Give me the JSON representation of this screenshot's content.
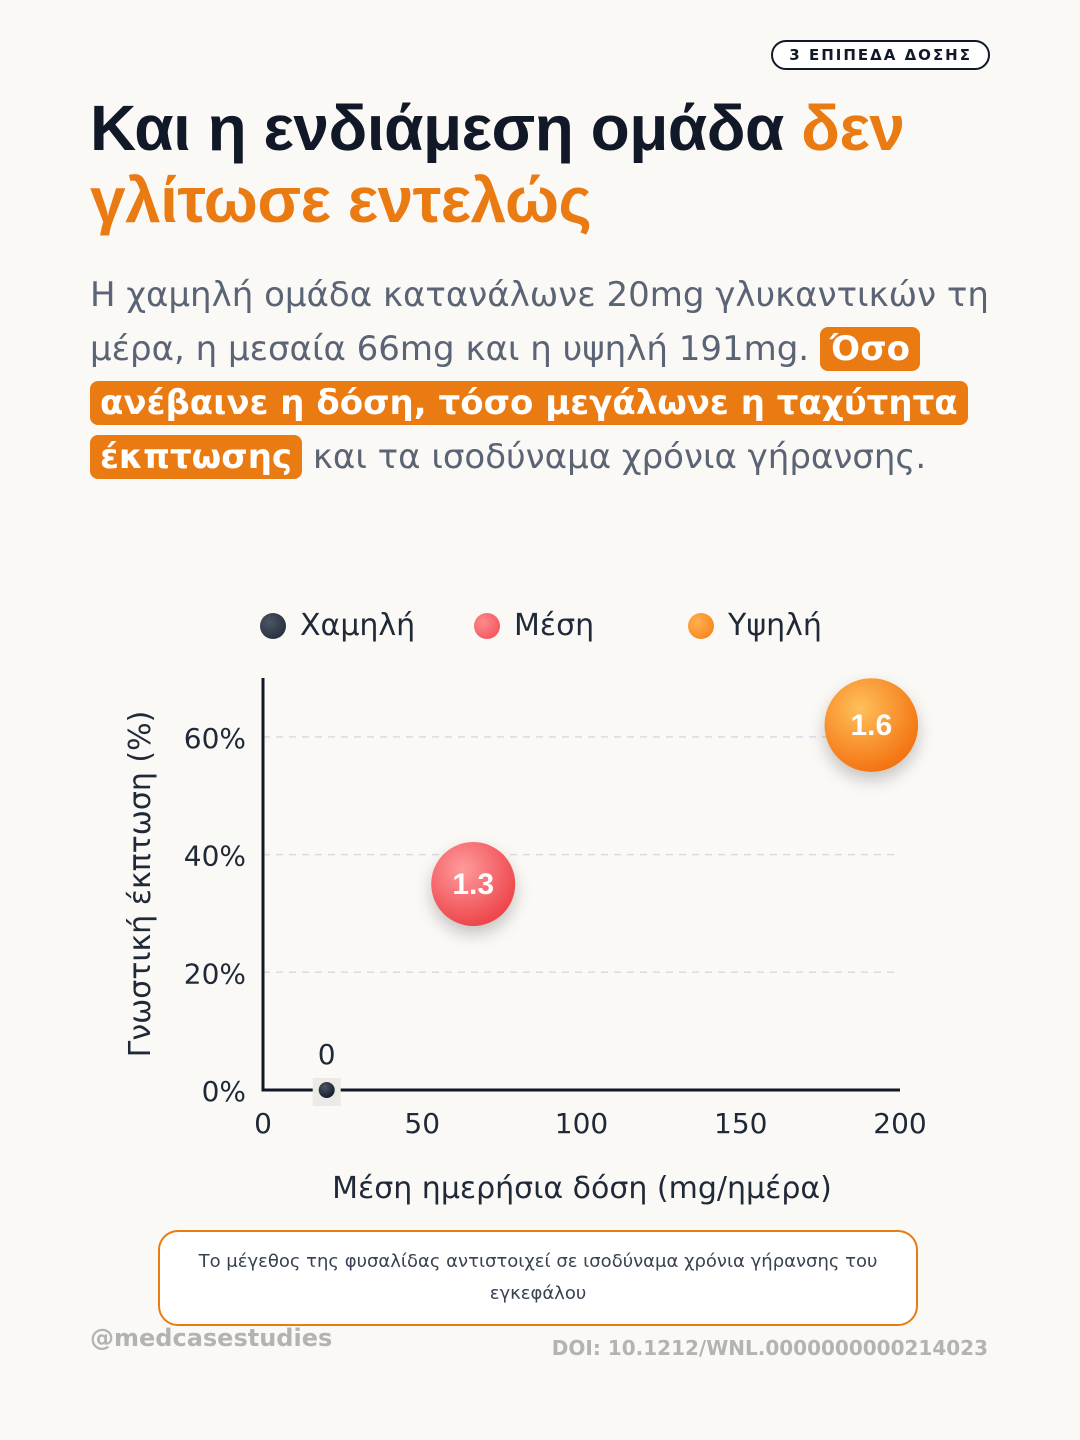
{
  "badge": "3 ΕΠΙΠΕΔΑ ΔΟΣΗΣ",
  "title": {
    "main": "Και η ενδιάμεση ομάδα ",
    "accent": "δεν γλίτωσε εντελώς"
  },
  "description": {
    "part1": "Η χαμηλή ομάδα κατανάλωνε 20mg γλυκαντικών τη μέρα, η μεσαία 66mg και η υψηλή 191mg. ",
    "highlight": "Όσο ανέβαινε η δόση, τόσο μεγάλωνε η ταχύτητα έκπτωσης",
    "part2": " και τα ισοδύναμα χρόνια γήρανσης."
  },
  "chart_data": {
    "type": "scatter",
    "xlabel": "Μέση ημερήσια δόση (mg/ημέρα)",
    "ylabel": "Γνωστική έκπτωση (%)",
    "xlim": [
      0,
      200
    ],
    "ylim": [
      0,
      70
    ],
    "xticks": [
      0,
      50,
      100,
      150,
      200
    ],
    "yticks": [
      0,
      20,
      40,
      60
    ],
    "xtick_labels": [
      "0",
      "50",
      "100",
      "150",
      "200"
    ],
    "ytick_labels": [
      "0%",
      "20%",
      "40%",
      "60%"
    ],
    "grid": true,
    "legend_position": "top",
    "series": [
      {
        "name": "Χαμηλή",
        "x": 20,
        "y": 0,
        "size": 0,
        "label": "0",
        "color": "#1e2536"
      },
      {
        "name": "Μέση",
        "x": 66,
        "y": 35,
        "size": 1.3,
        "label": "1.3",
        "color": "#ef4a4f"
      },
      {
        "name": "Υψηλή",
        "x": 191,
        "y": 62,
        "size": 1.6,
        "label": "1.6",
        "color": "#f57c10"
      }
    ]
  },
  "note": "Το μέγεθος της φυσαλίδας αντιστοιχεί σε ισοδύναμα χρόνια γήρανσης του εγκεφάλου",
  "footer": {
    "handle": "@medcasestudies",
    "doi": "DOI: 10.1212/WNL.0000000000214023"
  }
}
